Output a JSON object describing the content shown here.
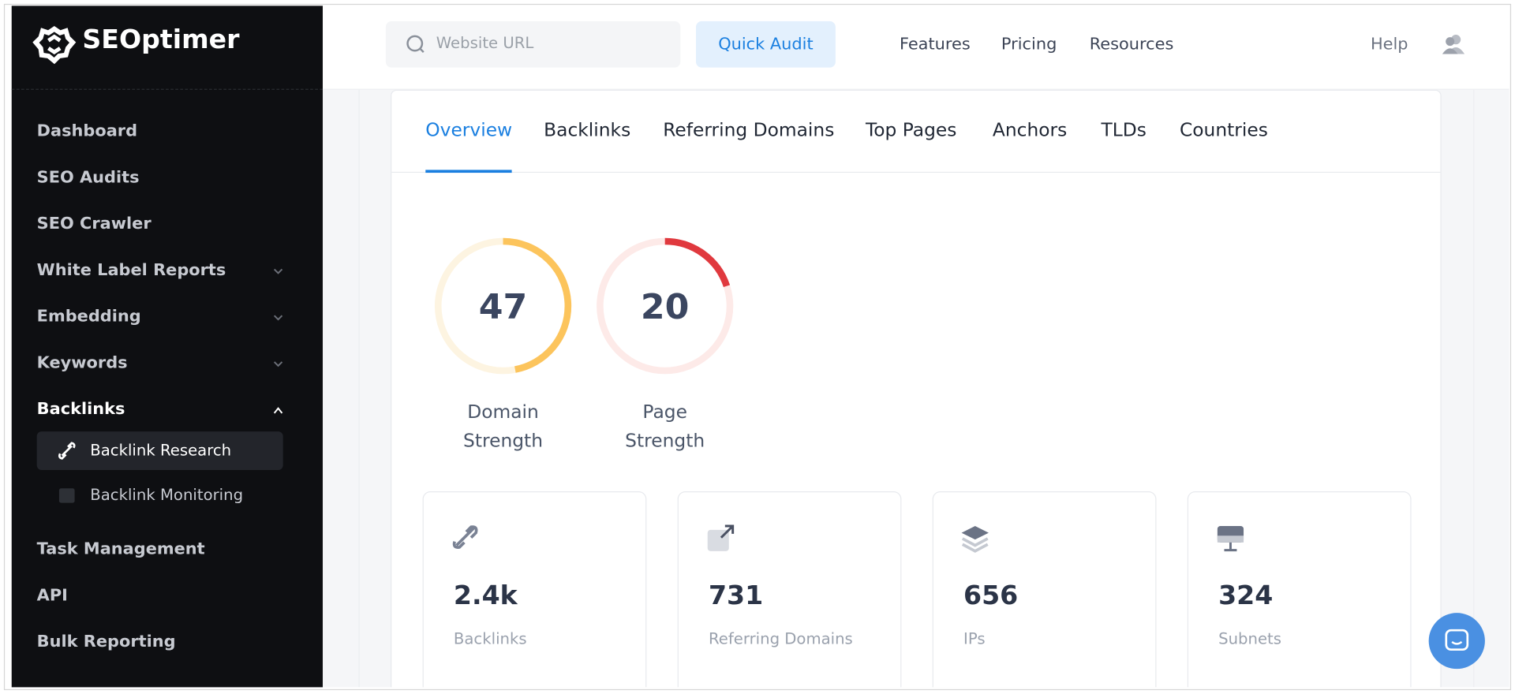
{
  "brand": "SEOptimer",
  "sidebar": {
    "items": [
      {
        "label": "Dashboard"
      },
      {
        "label": "SEO Audits"
      },
      {
        "label": "SEO Crawler"
      },
      {
        "label": "White Label Reports",
        "expanded": false
      },
      {
        "label": "Embedding",
        "expanded": false
      },
      {
        "label": "Keywords",
        "expanded": false
      },
      {
        "label": "Backlinks",
        "expanded": true,
        "children": [
          "Backlink Research",
          "Backlink Monitoring"
        ]
      },
      {
        "label": "Task Management"
      },
      {
        "label": "API"
      },
      {
        "label": "Bulk Reporting"
      }
    ]
  },
  "topbar": {
    "search_placeholder": "Website URL",
    "button": "Quick Audit",
    "nav": [
      "Features",
      "Pricing",
      "Resources"
    ],
    "help": "Help"
  },
  "tabs": [
    "Overview",
    "Backlinks",
    "Referring Domains",
    "Top Pages",
    "Anchors",
    "TLDs",
    "Countries"
  ],
  "gauges": [
    {
      "value": 47,
      "label": "Domain Strength",
      "color": "#fcc45c",
      "track": "#fdf4e1"
    },
    {
      "value": 20,
      "label": "Page Strength",
      "color": "#e0393e",
      "track": "#fdeae8"
    }
  ],
  "stats": [
    {
      "value": "2.4k",
      "label": "Backlinks"
    },
    {
      "value": "731",
      "label": "Referring Domains"
    },
    {
      "value": "656",
      "label": "IPs"
    },
    {
      "value": "324",
      "label": "Subnets"
    }
  ]
}
